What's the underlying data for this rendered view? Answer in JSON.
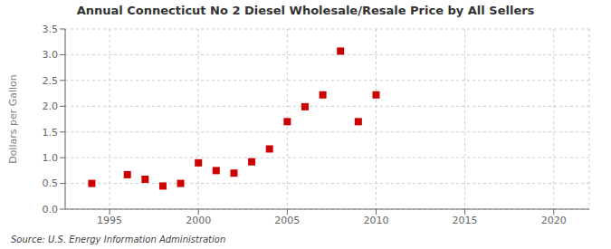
{
  "chart_data": {
    "type": "scatter",
    "title": "Annual Connecticut No 2 Diesel Wholesale/Resale Price by All Sellers",
    "y_label": "Dollars per Gallon",
    "source": "Source: U.S. Energy Information Administration",
    "x": [
      1994,
      1996,
      1997,
      1998,
      1999,
      2000,
      2001,
      2002,
      2003,
      2004,
      2005,
      2006,
      2007,
      2008,
      2009,
      2010
    ],
    "values": [
      0.5,
      0.67,
      0.58,
      0.45,
      0.5,
      0.9,
      0.75,
      0.7,
      0.92,
      1.17,
      1.7,
      1.99,
      2.22,
      3.07,
      1.7,
      2.22
    ],
    "color": "#cc0000",
    "marker": "square",
    "xlim": [
      1992.5,
      2022
    ],
    "xticks": [
      1995,
      2000,
      2005,
      2010,
      2015,
      2020
    ],
    "ylim": [
      0.0,
      3.5
    ],
    "yticks": [
      {
        "value": 0,
        "label": "0.0"
      },
      0.5,
      {
        "value": 1,
        "label": "1.0"
      },
      1.5,
      {
        "value": 2,
        "label": "2.0"
      },
      2.5,
      {
        "value": 3,
        "label": "3.0"
      },
      3.5
    ],
    "grid": true
  }
}
